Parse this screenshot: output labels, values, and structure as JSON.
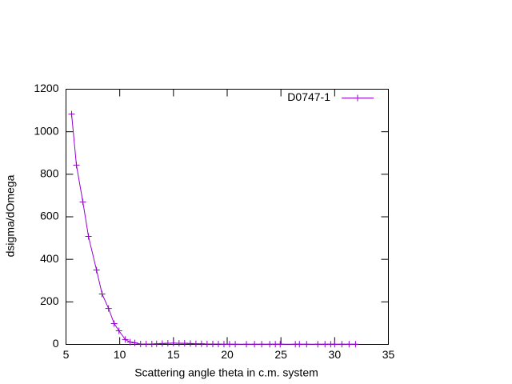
{
  "chart_data": {
    "type": "line",
    "xlabel": "Scattering angle theta in c.m. system",
    "ylabel": "dsigma/dOmega",
    "x": [
      5.52,
      5.97,
      6.57,
      7.09,
      7.84,
      8.36,
      8.96,
      9.48,
      9.93,
      10.52,
      10.97,
      11.4,
      11.94,
      12.46,
      12.99,
      13.43,
      13.96,
      14.48,
      15.0,
      15.52,
      16.04,
      16.57,
      17.09,
      17.61,
      18.13,
      18.66,
      19.18,
      19.7,
      20.22,
      20.75,
      21.79,
      22.54,
      23.21,
      23.96,
      24.48,
      24.93,
      26.34,
      26.72,
      27.39,
      28.43,
      29.1,
      29.63,
      30.0,
      30.67,
      31.34,
      31.94
    ],
    "series": [
      {
        "name": "D0747-1",
        "color": "#9400d3",
        "values": [
          1083,
          843,
          670,
          508,
          350,
          237,
          169,
          98,
          64,
          23,
          11,
          7,
          2,
          2,
          2,
          3,
          4,
          5,
          6,
          5,
          5,
          4,
          3,
          3,
          2,
          2,
          2,
          1,
          1,
          1,
          1,
          1,
          1,
          1,
          1,
          1,
          1,
          1,
          1,
          1,
          1,
          1,
          1,
          1,
          1,
          1
        ]
      }
    ],
    "xlim": [
      5,
      35
    ],
    "xticks": [
      5,
      10,
      15,
      20,
      25,
      30,
      35
    ],
    "ylim": [
      0,
      1200
    ],
    "yticks": [
      0,
      200,
      400,
      600,
      800,
      1000,
      1200
    ],
    "legend": "top-right",
    "grid": false
  }
}
